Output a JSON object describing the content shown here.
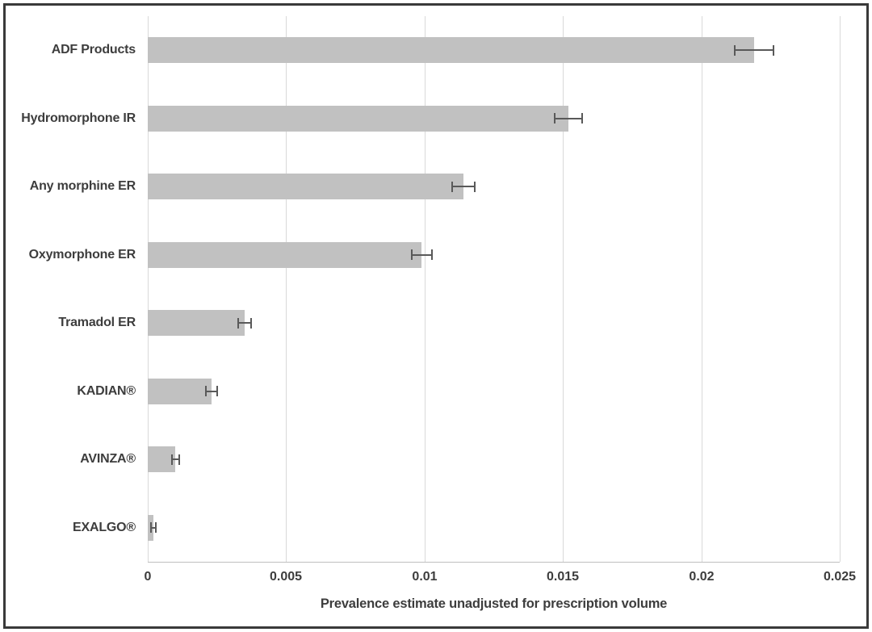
{
  "chart_data": {
    "type": "bar",
    "orientation": "horizontal",
    "title": "",
    "xlabel": "Prevalence estimate unadjusted for prescription volume",
    "ylabel": "",
    "categories": [
      "ADF Products",
      "Hydromorphone IR",
      "Any morphine ER",
      "Oxymorphone ER",
      "Tramadol ER",
      "KADIAN®",
      "AVINZA®",
      "EXALGO®"
    ],
    "values": [
      0.0219,
      0.0152,
      0.0114,
      0.0099,
      0.0035,
      0.0023,
      0.001,
      0.0002
    ],
    "errors": [
      0.0007,
      0.0005,
      0.0004,
      0.00037,
      0.00023,
      0.0002,
      0.00013,
      8e-05
    ],
    "xlim": [
      0,
      0.025
    ],
    "xticks": [
      0,
      0.005,
      0.01,
      0.015,
      0.02,
      0.025
    ],
    "xtick_labels": [
      "0",
      "0.005",
      "0.01",
      "0.015",
      "0.02",
      "0.025"
    ],
    "grid": true,
    "legend": false,
    "error_bars": true,
    "colors": {
      "bar_fill": "#c1c1c1",
      "error_bar": "#595959",
      "gridline": "#d9d9d9",
      "axis_line": "#bfbfbf",
      "text": "#3d3d3d",
      "frame_border": "#3a3a3a",
      "background": "#ffffff"
    }
  }
}
